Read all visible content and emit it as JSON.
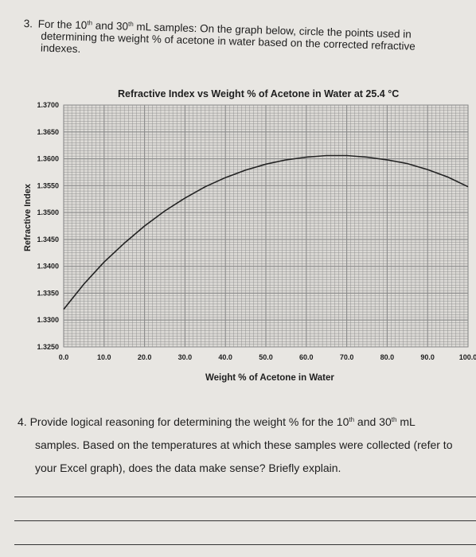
{
  "question3": {
    "number": "3.",
    "text_a": "For the 10",
    "sup_a": "th",
    "text_b": " and 30",
    "sup_b": "th",
    "text_c": " mL samples: On the graph below, circle the points used in",
    "line2": "determining the weight % of acetone in water based on the corrected refractive",
    "line3": "indexes."
  },
  "chart_data": {
    "type": "line",
    "title": "Refractive Index vs Weight % of Acetone in Water at 25.4 °C",
    "xlabel": "Weight % of Acetone in Water",
    "ylabel": "Refractive Index",
    "xlim": [
      0,
      100
    ],
    "ylim": [
      1.325,
      1.37
    ],
    "x_tick_labels": [
      "0.0",
      "10.0",
      "20.0",
      "30.0",
      "40.0",
      "50.0",
      "60.0",
      "70.0",
      "80.0",
      "90.0",
      "100.0"
    ],
    "y_tick_labels": [
      "1.3250",
      "1.3300",
      "1.3350",
      "1.3400",
      "1.3450",
      "1.3500",
      "1.3550",
      "1.3600",
      "1.3650",
      "1.3700"
    ],
    "grid": true,
    "series": [
      {
        "x": [
          0,
          5,
          10,
          15,
          20,
          25,
          30,
          35,
          40,
          45,
          50,
          55,
          60,
          65,
          70,
          75,
          80,
          85,
          90,
          95,
          100
        ],
        "values": [
          1.332,
          1.3367,
          1.3408,
          1.3443,
          1.3475,
          1.3503,
          1.3527,
          1.3548,
          1.3565,
          1.3579,
          1.359,
          1.3598,
          1.3603,
          1.3606,
          1.3606,
          1.3603,
          1.3598,
          1.3591,
          1.358,
          1.3566,
          1.3548
        ]
      }
    ],
    "colors": {
      "grid": "#8a8a8a",
      "curve": "#222222",
      "background": "#e8e6e2"
    }
  },
  "question4": {
    "number": "4.",
    "l1_a": "Provide logical reasoning for determining the weight % for the 10",
    "l1_sup": "th",
    "l1_b": " and 30",
    "l1_sup2": "th",
    "l1_c": " mL",
    "line2": "samples. Based on the temperatures at which these samples were collected (refer to",
    "line3": "your Excel graph), does the data make sense? Briefly explain."
  }
}
